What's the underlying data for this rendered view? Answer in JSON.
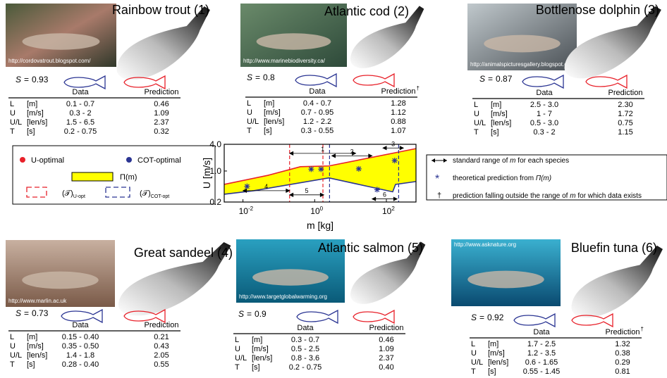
{
  "species": [
    {
      "name": "Rainbow trout (1)",
      "credit": "http://cordovatrout.blogspot.com/",
      "score_symbol": "S",
      "relation": "=",
      "score": 0.93,
      "header": [
        "Data",
        "Prediction"
      ],
      "rows": [
        [
          "L",
          "[m]",
          "0.1 - 0.7",
          "0.46"
        ],
        [
          "U",
          "[m/s]",
          "0.3 - 2",
          "1.09"
        ],
        [
          "U/L",
          "[len/s]",
          "1.5 - 6.5",
          "2.37"
        ],
        [
          "T",
          "[s]",
          "0.2 - 0.75",
          "0.32"
        ]
      ]
    },
    {
      "name": "Atlantic cod (2)",
      "credit": "http://www.marinebiodiversity.ca/",
      "score_symbol": "S",
      "relation": "=",
      "score": 0.8,
      "header": [
        "Data",
        "Prediction"
      ],
      "dagger": "†",
      "rows": [
        [
          "L",
          "[m]",
          "0.4 - 0.7",
          "1.28"
        ],
        [
          "U",
          "[m/s]",
          "0.7 - 0.95",
          "1.12"
        ],
        [
          "U/L",
          "[len/s]",
          "1.2 - 2.2",
          "0.88"
        ],
        [
          "T",
          "[s]",
          "0.3 - 0.55",
          "1.07"
        ]
      ]
    },
    {
      "name": "Bottlenose dolphin (3)",
      "credit": "http://animalspicturesgallery.blogspot.com/",
      "score_symbol": "S",
      "relation": "=",
      "score": 0.87,
      "header": [
        "Data",
        "Prediction"
      ],
      "rows": [
        [
          "L",
          "[m]",
          "2.5 - 3.0",
          "2.30"
        ],
        [
          "U",
          "[m/s]",
          "1 - 7",
          "1.72"
        ],
        [
          "U/L",
          "[len/s]",
          "0.5 - 3.0",
          "0.75"
        ],
        [
          "T",
          "[s]",
          "0.3 - 2",
          "1.15"
        ]
      ]
    },
    {
      "name": "Great sandeel (4)",
      "credit": "http://www.marlin.ac.uk",
      "score_symbol": "S",
      "relation": "=",
      "score": 0.73,
      "header": [
        "Data",
        "Prediction"
      ],
      "rows": [
        [
          "L",
          "[m]",
          "0.15 - 0.40",
          "0.21"
        ],
        [
          "U",
          "[m/s]",
          "0.35 - 0.50",
          "0.43"
        ],
        [
          "U/L",
          "[len/s]",
          "1.4 - 1.8",
          "2.05"
        ],
        [
          "T",
          "[s]",
          "0.28 - 0.40",
          "0.55"
        ]
      ]
    },
    {
      "name": "Atlantic salmon (5)",
      "credit": "http://www.targetglobalwarming.org",
      "score_symbol": "S",
      "relation": "=",
      "score": 0.9,
      "header": [
        "Data",
        "Prediction"
      ],
      "rows": [
        [
          "L",
          "[m]",
          "0.3 - 0.7",
          "0.46"
        ],
        [
          "U",
          "[m/s]",
          "0.5 - 2.5",
          "1.09"
        ],
        [
          "U/L",
          "[len/s]",
          "0.8 - 3.6",
          "2.37"
        ],
        [
          "T",
          "[s]",
          "0.2 - 0.75",
          "0.40"
        ]
      ]
    },
    {
      "name": "Bluefin tuna (6)",
      "credit": "http://www.asknature.org",
      "score_symbol": "S",
      "relation": "=",
      "score": 0.92,
      "header": [
        "Data",
        "Prediction"
      ],
      "dagger": "†",
      "rows": [
        [
          "L",
          "[m]",
          "1.7 - 2.5",
          "1.32"
        ],
        [
          "U",
          "[m/s]",
          "1.2 - 3.5",
          "0.38"
        ],
        [
          "U/L",
          "[len/s]",
          "0.6 - 1.65",
          "0.29"
        ],
        [
          "T",
          "[s]",
          "0.55 - 1.45",
          "0.81"
        ]
      ]
    }
  ],
  "legend": {
    "u_optimal": "U-optimal",
    "cot_optimal": "COT-optimal",
    "pi": "Π(m)",
    "t_symbol": "(𝒯)",
    "t_u": "U-opt",
    "t_cot": "COT-opt"
  },
  "notes": [
    {
      "parts": [
        "standard range of ",
        "m",
        " for each species"
      ]
    },
    {
      "parts": [
        "theoretical prediction from ",
        "Π(m)"
      ]
    },
    {
      "symbol": "†",
      "parts": [
        "prediction falling outside the range of ",
        "m",
        " for which data exists"
      ]
    }
  ],
  "chart_data": {
    "type": "line",
    "xlabel": "m [kg]",
    "ylabel": "U [m/s]",
    "log_x": true,
    "log_y": true,
    "xlim": [
      0.003,
      670
    ],
    "ylim": [
      0.2,
      4
    ],
    "xticks": [
      {
        "value": 0.01,
        "label": "10",
        "sup": "-2"
      },
      {
        "value": 1,
        "label": "10",
        "sup": "0"
      },
      {
        "value": 100,
        "label": "10",
        "sup": "2"
      }
    ],
    "yticks": [
      0.2,
      {
        "value": 1,
        "label": "1.0"
      },
      {
        "value": 4,
        "label": "4.0"
      }
    ],
    "region_color": "#ffff00",
    "series": [
      {
        "name": "U-optimal",
        "color": "#e8212a",
        "x": [
          0.003,
          0.05,
          0.4,
          2.5,
          670
        ],
        "values": [
          0.5,
          0.8,
          1.25,
          1.3,
          3.2
        ]
      },
      {
        "name": "COT-optimal",
        "color": "#2b3593",
        "x": [
          0.003,
          0.02,
          2.5,
          150,
          180,
          670
        ],
        "values": [
          0.3,
          0.36,
          0.7,
          0.34,
          0.5,
          0.58
        ]
      }
    ],
    "predictions": {
      "color": "#2b3593",
      "x": [
        0.013,
        0.8,
        1.5,
        17,
        55,
        170
      ],
      "values": [
        0.45,
        1.1,
        1.1,
        1.12,
        0.38,
        1.72
      ]
    },
    "t_bounds": [
      {
        "color": "#e8212a",
        "x": [
          0.2,
          1.7
        ]
      },
      {
        "color": "#2b3593",
        "x": [
          2.6,
          220
        ]
      }
    ],
    "ranges": [
      {
        "label": "1",
        "x": [
          0.2,
          14
        ],
        "y": 2.5
      },
      {
        "label": "2",
        "x": [
          3,
          40
        ],
        "y": 2.2
      },
      {
        "label": "3",
        "x": [
          80,
          300
        ],
        "y": 3.3
      },
      {
        "label": "4",
        "x": [
          0.01,
          0.2
        ],
        "y": 0.36
      },
      {
        "label": "5",
        "x": [
          0.2,
          1.8
        ],
        "y": 0.29
      },
      {
        "label": "6",
        "x": [
          40,
          200
        ],
        "y": 0.235
      }
    ]
  }
}
